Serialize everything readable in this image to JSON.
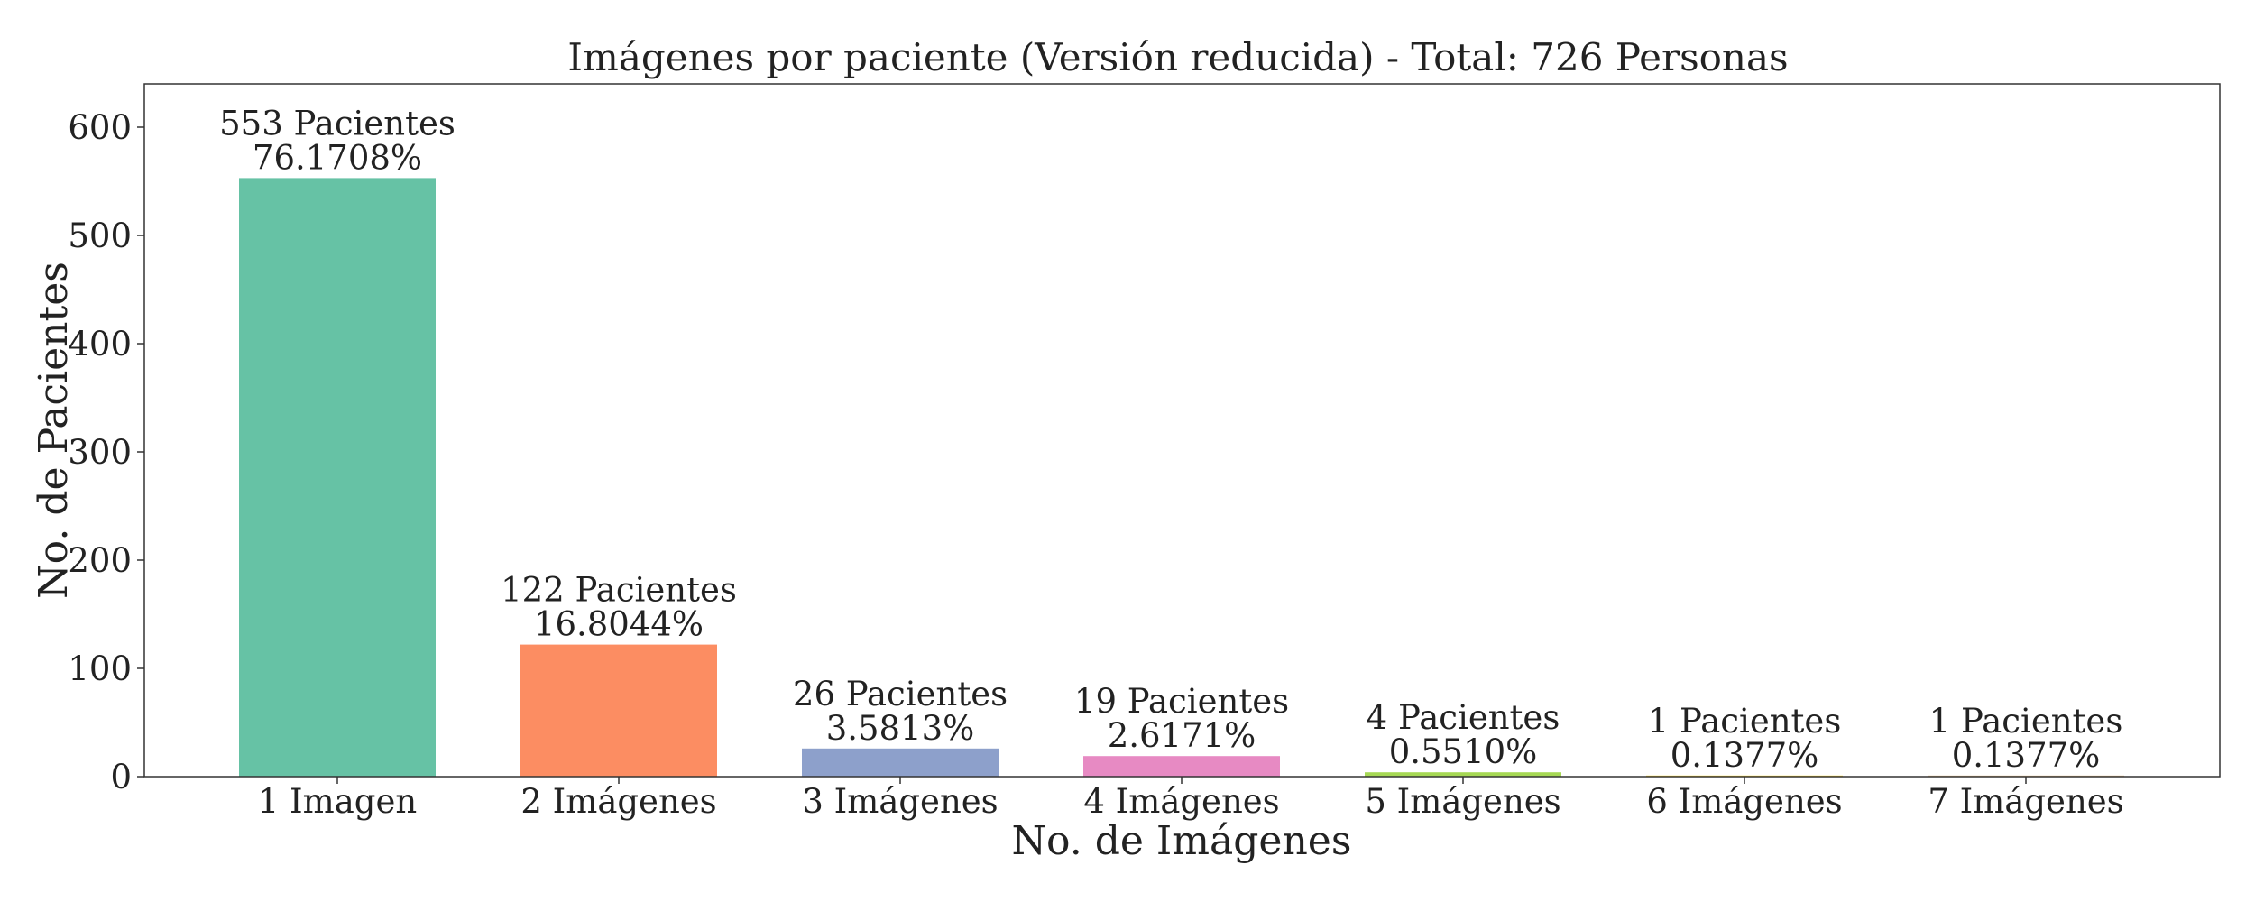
{
  "chart_data": {
    "type": "bar",
    "title": "Imágenes por paciente (Versión reducida) - Total: 726 Personas",
    "xlabel": "No. de Imágenes",
    "ylabel": "No. de Pacientes",
    "categories": [
      "1 Imagen",
      "2 Imágenes",
      "3 Imágenes",
      "4 Imágenes",
      "5 Imágenes",
      "6 Imágenes",
      "7 Imágenes"
    ],
    "values": [
      553,
      122,
      26,
      19,
      4,
      1,
      1
    ],
    "bar_labels": [
      [
        "553 Pacientes",
        "76.1708%"
      ],
      [
        "122 Pacientes",
        "16.8044%"
      ],
      [
        "26 Pacientes",
        "3.5813%"
      ],
      [
        "19 Pacientes",
        "2.6171%"
      ],
      [
        "4 Pacientes",
        "0.5510%"
      ],
      [
        "1 Pacientes",
        "0.1377%"
      ],
      [
        "1 Pacientes",
        "0.1377%"
      ]
    ],
    "colors": [
      "#66c2a5",
      "#fc8d62",
      "#8da0cb",
      "#e78ac3",
      "#a6d854",
      "#ffd92f",
      "#e5c494"
    ],
    "ylim": [
      0,
      640
    ],
    "yticks": [
      0,
      100,
      200,
      300,
      400,
      500,
      600
    ],
    "grid": false,
    "legend": false
  }
}
